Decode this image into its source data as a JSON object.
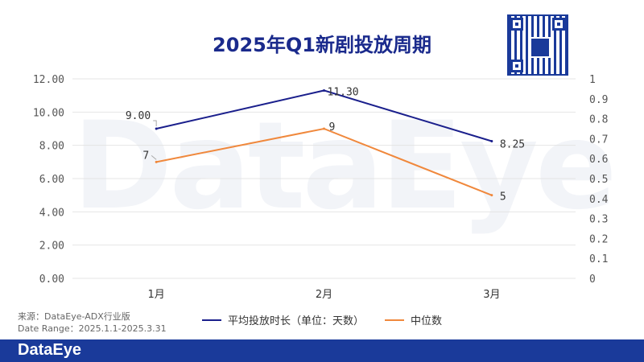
{
  "title": "2025年Q1新剧投放周期",
  "watermark": "DataEye",
  "footer": {
    "logo": "DataEye"
  },
  "source": {
    "line1": "来源：DataEye-ADX行业版",
    "line2": "Date Range：2025.1.1-2025.3.31"
  },
  "colors": {
    "series1": "#1a1f8c",
    "series2": "#f0883c",
    "title": "#1a2a8c",
    "footer": "#1a3a9a"
  },
  "chart_data": {
    "type": "line",
    "categories": [
      "1月",
      "2月",
      "3月"
    ],
    "series": [
      {
        "name": "平均投放时长（单位：天数）",
        "values": [
          9.0,
          11.3,
          8.25
        ],
        "labels": [
          "9.00",
          "11.30",
          "8.25"
        ]
      },
      {
        "name": "中位数",
        "values": [
          7,
          9,
          5
        ],
        "labels": [
          "7",
          "9",
          "5"
        ]
      }
    ],
    "y_left": {
      "ylim": [
        0,
        12
      ],
      "ticks": [
        "0.00",
        "2.00",
        "4.00",
        "6.00",
        "8.00",
        "10.00",
        "12.00"
      ]
    },
    "y_right": {
      "ylim": [
        0,
        1
      ],
      "ticks": [
        "0",
        "0.1",
        "0.2",
        "0.3",
        "0.4",
        "0.5",
        "0.6",
        "0.7",
        "0.8",
        "0.9",
        "1"
      ]
    },
    "grid": true,
    "legend": "bottom"
  }
}
